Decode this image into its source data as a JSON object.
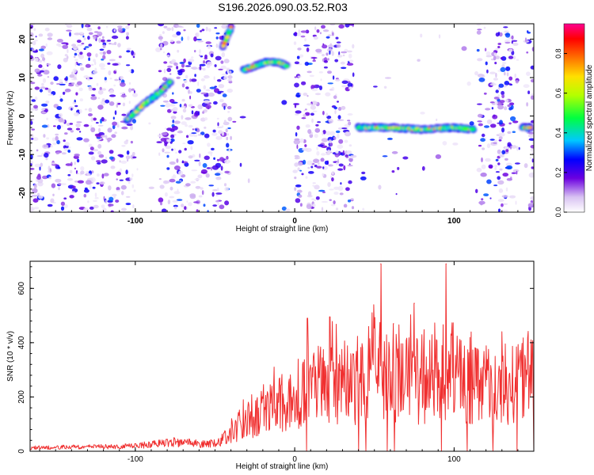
{
  "figure": {
    "title": "S196.2026.090.03.52.R03"
  },
  "chart_data": [
    {
      "type": "heatmap",
      "xlabel": "Height of straight line (km)",
      "ylabel": "Frequency (Hz)",
      "xlim": [
        -166,
        150
      ],
      "ylim": [
        -25,
        24
      ],
      "x_ticks": [
        "-100",
        "0",
        "100"
      ],
      "y_ticks": [
        "-20",
        "-10",
        "0",
        "10",
        "20"
      ],
      "colorbar": {
        "label": "Normalized spectral amplitude",
        "range": [
          0,
          0.95
        ],
        "ticks": [
          "0.0",
          "0.2",
          "0.4",
          "0.6",
          "0.8"
        ]
      },
      "ridges": [
        {
          "x": [
            -105,
            -95,
            -85,
            -78
          ],
          "freq": [
            -1,
            3,
            6,
            9
          ]
        },
        {
          "x": [
            -45,
            -42,
            -40
          ],
          "freq": [
            18,
            21,
            23
          ]
        },
        {
          "x": [
            -32,
            -25,
            -18,
            -10,
            -5
          ],
          "freq": [
            12,
            13,
            14,
            14,
            13
          ]
        },
        {
          "x": [
            40,
            60,
            80,
            100,
            112
          ],
          "freq": [
            -3,
            -3,
            -3.5,
            -3,
            -3.5
          ]
        },
        {
          "x": [
            143,
            148
          ],
          "freq": [
            -3,
            -3
          ]
        }
      ],
      "gaps": [
        [
          -100,
          -85
        ],
        [
          -40,
          0
        ],
        [
          37,
          115
        ],
        [
          140,
          145
        ]
      ]
    },
    {
      "type": "line",
      "xlabel": "Height of straight line (km)",
      "ylabel": "SNR (10 * v/v)",
      "xlim": [
        -166,
        150
      ],
      "ylim": [
        0,
        700
      ],
      "x_ticks": [
        "-100",
        "0",
        "100"
      ],
      "y_ticks": [
        "0",
        "200",
        "400",
        "600"
      ],
      "color": "#f03030",
      "envelope": {
        "x": [
          -166,
          -140,
          -110,
          -90,
          -75,
          -65,
          -55,
          -45,
          -38,
          -30,
          -20,
          -10,
          0,
          10,
          20,
          30,
          40,
          50,
          55,
          60,
          70,
          80,
          90,
          95,
          100,
          110,
          120,
          130,
          140,
          150
        ],
        "y": [
          15,
          18,
          20,
          30,
          40,
          35,
          30,
          50,
          100,
          150,
          180,
          220,
          250,
          300,
          320,
          340,
          300,
          380,
          690,
          350,
          360,
          320,
          380,
          690,
          350,
          330,
          310,
          300,
          320,
          390
        ]
      },
      "peaks": [
        {
          "x": 54,
          "y": 690
        },
        {
          "x": 95,
          "y": 690
        },
        {
          "x": 8,
          "y": 490
        },
        {
          "x": 22,
          "y": 495
        },
        {
          "x": 75,
          "y": 545
        },
        {
          "x": 62,
          "y": 470
        }
      ]
    }
  ]
}
